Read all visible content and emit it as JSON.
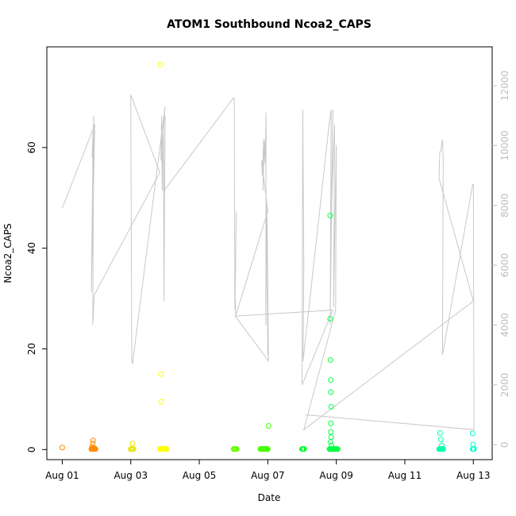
{
  "chart_data": {
    "type": "scatter",
    "title": "ATOM1 Southbound Ncoa2_CAPS",
    "xlabel": "Date",
    "ylabel": "Ncoa2_CAPS",
    "x_ticks": [
      "Aug 01",
      "Aug 03",
      "Aug 05",
      "Aug 07",
      "Aug 09",
      "Aug 11",
      "Aug 13"
    ],
    "x_tick_days": [
      1,
      3,
      5,
      7,
      9,
      11,
      13
    ],
    "x_range_days": [
      0.55,
      13.55
    ],
    "ylim": [
      -2,
      80
    ],
    "y_ticks": [
      0,
      20,
      40,
      60
    ],
    "y2lim": [
      -500,
      13300
    ],
    "y2_ticks": [
      0,
      2000,
      4000,
      6000,
      8000,
      10000,
      12000
    ],
    "y2_color": "#bdbdbd",
    "grid": false,
    "series": [
      {
        "name": "",
        "kind": "points",
        "axis": "left",
        "x_days": [
          1.0,
          1.88,
          1.87,
          1.89,
          1.9,
          1.92,
          1.95,
          1.97,
          1.85,
          1.86,
          1.88,
          1.9,
          1.93,
          1.96,
          3.0,
          3.02,
          3.03,
          3.04,
          3.05,
          3.07,
          3.08,
          3.85,
          3.86,
          3.87,
          3.88,
          3.9,
          3.92,
          3.94,
          3.96,
          3.98,
          4.0,
          4.02,
          4.05,
          3.88,
          3.89,
          3.9,
          3.86,
          6.0,
          6.02,
          6.04,
          6.05,
          6.07,
          6.09,
          6.78,
          6.8,
          6.82,
          6.84,
          6.86,
          6.88,
          6.9,
          6.92,
          6.94,
          6.96,
          6.98,
          7.0,
          7.02,
          8.0,
          8.02,
          8.04,
          8.06,
          8.8,
          8.82,
          8.84,
          8.86,
          8.88,
          8.9,
          8.92,
          8.94,
          8.96,
          8.98,
          9.0,
          9.02,
          9.04,
          8.82,
          8.82,
          8.83,
          8.84,
          8.84,
          8.85,
          8.84,
          8.84,
          8.85,
          8.83,
          8.86,
          12.0,
          12.02,
          12.04,
          12.06,
          12.08,
          12.1,
          12.12,
          12.03,
          12.05,
          12.08,
          12.98,
          13.0,
          13.02,
          12.98,
          12.99
        ],
        "y": [
          0.4,
          0.2,
          0.5,
          1.2,
          1.8,
          0.3,
          0.2,
          0.1,
          0.1,
          0.1,
          0.1,
          0.1,
          0.1,
          0.1,
          0.1,
          0.1,
          0.1,
          0.1,
          1.2,
          0.1,
          0.1,
          0.1,
          0.1,
          0.1,
          0.1,
          0.1,
          0.1,
          0.1,
          0.1,
          0.1,
          0.1,
          0.1,
          0.1,
          15.0,
          9.5,
          0.2,
          76.5,
          0.1,
          0.1,
          0.1,
          0.1,
          0.1,
          0.1,
          0.1,
          0.1,
          0.1,
          0.1,
          0.1,
          0.1,
          0.1,
          0.1,
          0.1,
          0.1,
          0.1,
          0.1,
          4.7,
          0.1,
          0.1,
          0.1,
          0.1,
          0.1,
          0.1,
          0.1,
          0.1,
          0.1,
          0.1,
          0.1,
          0.1,
          0.1,
          0.1,
          0.1,
          0.1,
          0.1,
          46.5,
          26.0,
          17.8,
          13.8,
          11.4,
          8.5,
          5.2,
          3.5,
          2.5,
          1.5,
          0.8,
          0.1,
          0.1,
          0.1,
          0.1,
          0.1,
          0.1,
          0.1,
          3.3,
          2.0,
          0.8,
          0.1,
          0.1,
          0.1,
          3.2,
          1.0
        ]
      },
      {
        "name": "",
        "kind": "line",
        "axis": "right",
        "color": "#c8c8c8",
        "x_days": [
          1.0,
          1.95,
          1.85,
          1.9,
          1.87,
          1.92,
          1.89,
          1.93,
          3.85,
          3.0,
          3.03,
          3.05,
          4.0,
          3.88,
          3.9,
          3.92,
          3.95,
          3.97,
          4.0,
          3.98,
          6.0,
          6.02,
          6.04,
          6.06,
          6.08,
          6.05,
          6.06,
          7.0,
          6.82,
          6.84,
          6.88,
          6.86,
          6.9,
          6.92,
          6.95,
          6.94,
          6.97,
          7.0,
          6.98,
          7.02,
          6.05,
          6.08,
          8.9,
          8.0,
          8.02,
          8.05,
          8.03,
          8.8,
          8.85,
          8.82,
          8.9,
          8.86,
          8.95,
          8.92,
          9.0,
          8.98,
          8.05,
          13.0,
          12.0,
          12.02,
          12.05,
          12.08,
          12.1,
          12.12,
          12.1,
          12.98,
          13.0,
          13.02,
          8.1
        ],
        "y2": [
          7900,
          10700,
          5100,
          10400,
          9600,
          11000,
          4000,
          5000,
          9100,
          11700,
          2800,
          2700,
          11300,
          9500,
          11000,
          8500,
          10800,
          4800,
          11000,
          8500,
          11600,
          11500,
          4500,
          6000,
          7800,
          5000,
          4300,
          7800,
          9500,
          9000,
          10200,
          8500,
          10200,
          9400,
          11100,
          4000,
          8000,
          3000,
          7600,
          2800,
          4300,
          4300,
          4500,
          2000,
          11200,
          6000,
          2800,
          10800,
          11200,
          4000,
          11200,
          8000,
          10700,
          4600,
          10000,
          4500,
          500,
          4800,
          8900,
          9800,
          9800,
          10100,
          10200,
          9500,
          3000,
          8700,
          8700,
          500,
          1000
        ]
      }
    ],
    "point_color_stops": [
      {
        "day": 1.0,
        "color": "#ff8c00"
      },
      {
        "day": 3.0,
        "color": "#e6e600"
      },
      {
        "day": 4.0,
        "color": "#ffff00"
      },
      {
        "day": 6.0,
        "color": "#66ff00"
      },
      {
        "day": 7.0,
        "color": "#44ff00"
      },
      {
        "day": 8.0,
        "color": "#00ff22"
      },
      {
        "day": 9.0,
        "color": "#00ff44"
      },
      {
        "day": 12.0,
        "color": "#00ffaa"
      },
      {
        "day": 13.0,
        "color": "#00ffcc"
      }
    ]
  }
}
